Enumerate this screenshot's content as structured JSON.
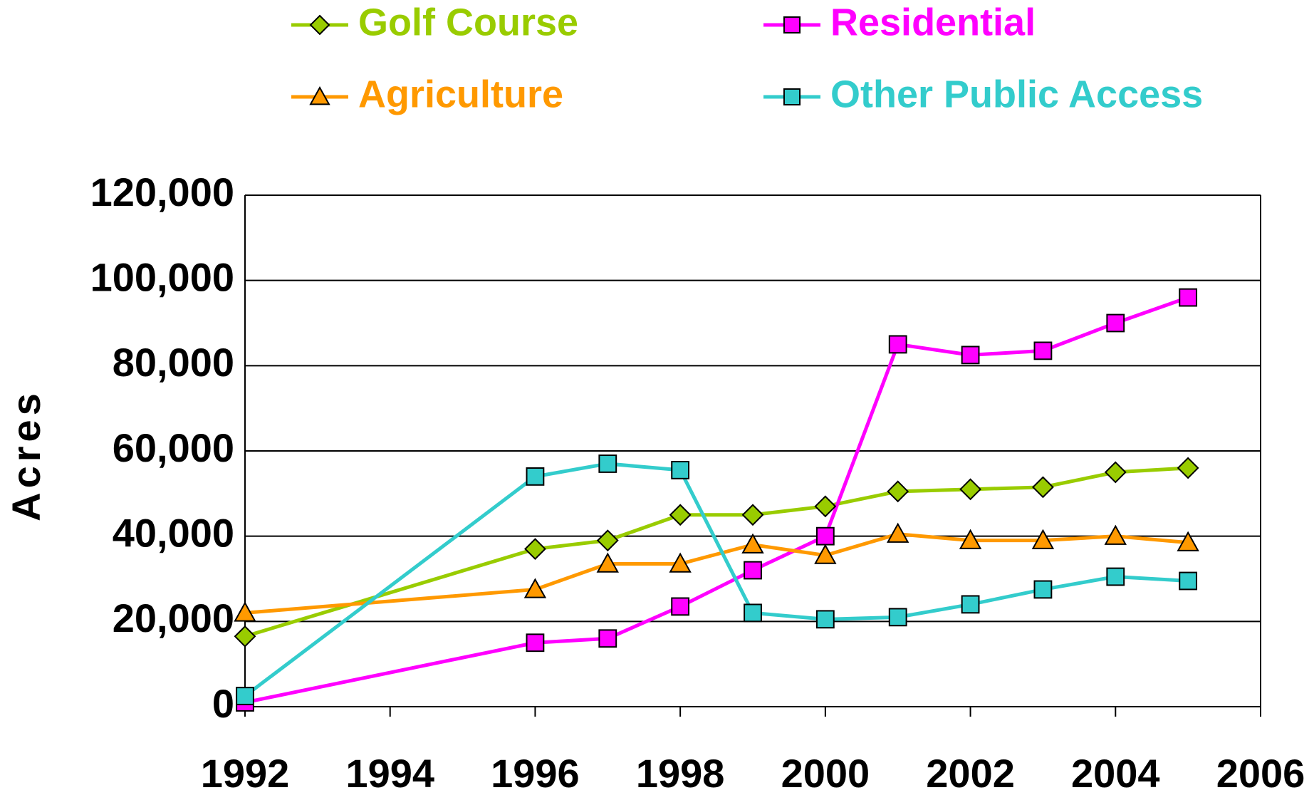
{
  "chart_data": {
    "type": "line",
    "y_label": "Acres",
    "x": [
      1992,
      1996,
      1997,
      1998,
      1999,
      2000,
      2001,
      2002,
      2003,
      2004,
      2005
    ],
    "series": [
      {
        "name": "Golf Course",
        "color": "#99cc00",
        "marker": "diamond",
        "values": [
          16500,
          37000,
          39000,
          45000,
          45000,
          47000,
          50500,
          51000,
          51500,
          55000,
          56000
        ]
      },
      {
        "name": "Residential",
        "color": "#ff00ff",
        "marker": "square",
        "values": [
          1000,
          15000,
          16000,
          23500,
          32000,
          40000,
          85000,
          82500,
          83500,
          90000,
          96000
        ]
      },
      {
        "name": "Agriculture",
        "color": "#ff9900",
        "marker": "triangle",
        "values": [
          22000,
          27500,
          33500,
          33500,
          38000,
          35500,
          40500,
          39000,
          39000,
          40000,
          38500
        ]
      },
      {
        "name": "Other Public Access",
        "color": "#33cccc",
        "marker": "square",
        "values": [
          2500,
          54000,
          57000,
          55500,
          22000,
          20500,
          21000,
          24000,
          27500,
          30500,
          29500
        ]
      }
    ],
    "xlim": [
      1992,
      2006
    ],
    "xticks": [
      1992,
      1994,
      1996,
      1998,
      2000,
      2002,
      2004,
      2006
    ],
    "ylim": [
      0,
      120000
    ],
    "yticks": [
      0,
      {
        "value": 20000,
        "label": "20,000"
      },
      {
        "value": 40000,
        "label": "40,000"
      },
      {
        "value": 60000,
        "label": "60,000"
      },
      {
        "value": 80000,
        "label": "80,000"
      },
      {
        "value": 100000,
        "label": "100,000"
      },
      {
        "value": 120000,
        "label": "120,000"
      }
    ],
    "grid": true,
    "legend": "top"
  }
}
